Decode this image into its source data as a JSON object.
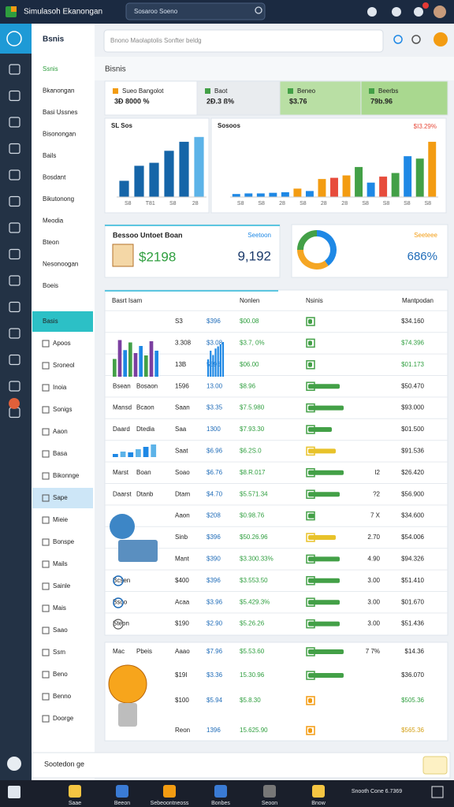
{
  "header": {
    "title": "Simulasoh Ekanongan",
    "search": "Sosaroo Soeno"
  },
  "sidebar": {
    "title": "Bsnis",
    "items": [
      "Ssnis",
      "Bkanongan",
      "Basi Ussnes",
      "Bisonongan",
      "Bails",
      "Bosdant",
      "Bikutonong",
      "Meodia",
      "Bteon",
      "Nesonoogan",
      "Boeis",
      "Basis",
      "Apoos",
      "Sroneol",
      "Inoia",
      "Sonigs",
      "Aaon",
      "Basa",
      "Bikonnge",
      "Sape",
      "Mieie",
      "Bonspe",
      "Mails",
      "Sainle",
      "Mais",
      "Saao",
      "Ssm",
      "Beno",
      "Benno",
      "Doorge"
    ],
    "footer": "Sootedon ge"
  },
  "search": {
    "placeholder": "Bnono Maolaptolis Sonfter beldg"
  },
  "section_title": "Bisnis",
  "kpis": [
    {
      "label": "Sueo Bangolot",
      "value": "3Ð 8000 %",
      "color": "#ffffff"
    },
    {
      "label": "Baot",
      "value": "2Ð.3 ß%",
      "color": "#e9ecef"
    },
    {
      "label": "Beneo",
      "value": "$3.76",
      "color": "#b9dfa4"
    },
    {
      "label": "Beerbs",
      "value": "79b.96",
      "color": "#a9d88f"
    }
  ],
  "charts": [
    {
      "title": "SL Sos",
      "values": [
        27,
        52,
        57,
        77,
        92,
        100
      ],
      "colors": [
        "#1565a8",
        "#1565a8",
        "#1565a8",
        "#1565a8",
        "#1565a8",
        "#5cb3e8"
      ],
      "xlabels": [
        "S8",
        "T81",
        "S8",
        "28"
      ],
      "ylim": [
        0,
        105
      ]
    },
    {
      "title": "Sosoos",
      "note": "$I3.29%",
      "values": [
        5,
        6,
        6,
        7,
        8,
        14,
        10,
        30,
        32,
        36,
        50,
        24,
        34,
        40,
        68,
        64,
        92
      ],
      "colors": [
        "#1e88e5",
        "#1e88e5",
        "#1e88e5",
        "#1e88e5",
        "#1e88e5",
        "#f39c12",
        "#1e88e5",
        "#f39c12",
        "#e74c3c",
        "#f39c12",
        "#43a047",
        "#1e88e5",
        "#e74c3c",
        "#43a047",
        "#1e88e5",
        "#43a047",
        "#f39c12"
      ],
      "xlabels": [
        "S8",
        "S8",
        "28",
        "S8",
        "28",
        "28",
        "S8",
        "S8",
        "S8",
        "S8"
      ],
      "ylim": [
        0,
        105
      ]
    }
  ],
  "cards": [
    {
      "label": "Bessoo Untoet Boan",
      "value": "$2198"
    },
    {
      "label": "Seetoon",
      "value": "9,192"
    },
    {
      "label": "Seeteee",
      "value": "686%",
      "donut": [
        40,
        35,
        25
      ],
      "donut_colors": [
        "#1e88e5",
        "#f5a623",
        "#43a047"
      ]
    }
  ],
  "mini_charts": [
    {
      "values": [
        30,
        62,
        45,
        58,
        40,
        52,
        36,
        60,
        44
      ],
      "colors": [
        "#43a047",
        "#7b3fa0",
        "#1e88e5",
        "#43a047",
        "#7b3fa0",
        "#1e88e5",
        "#43a047",
        "#7b3fa0",
        "#1e88e5"
      ]
    },
    {
      "values": [
        20,
        35,
        30,
        50,
        65,
        80
      ],
      "colors": [
        "#1e88e5",
        "#5cb3e8",
        "#1e88e5",
        "#5cb3e8",
        "#1e88e5",
        "#5cb3e8"
      ]
    },
    {
      "values": [
        40,
        60,
        50,
        65,
        70,
        75,
        80
      ],
      "colors": [
        "#1e88e5",
        "#1e88e5",
        "#1e88e5",
        "#1e88e5",
        "#1e88e5",
        "#1e88e5",
        "#1e88e5"
      ]
    }
  ],
  "table": {
    "headers": [
      "Basrt Isam",
      "Nonlen",
      "Nsinis",
      "Mantpodan"
    ],
    "rows": [
      {
        "c3": "S3",
        "c4": "$396",
        "c5": "$00.08",
        "progress": 5,
        "bar_color": "#43a047",
        "amount": "$34.160",
        "amount_color": "#222222"
      },
      {
        "c3": "3.308",
        "c4": "$3.08",
        "c5": "$3.7, 0%",
        "progress": 5,
        "bar_color": "#43a047",
        "amount": "$74.396",
        "amount_color": "#2e9e3e"
      },
      {
        "c3": "13B",
        "c4": "5396",
        "c5": "$06.00",
        "progress": 5,
        "bar_color": "#43a047",
        "amount": "$01.173",
        "amount_color": "#2e9e3e"
      },
      {
        "name": "Bsean",
        "sub": "Bosaon",
        "c3": "1596",
        "c4": "13.00",
        "c5": "$8.96",
        "progress": 40,
        "bar_color": "#43a047",
        "amount": "$50.470",
        "amount_color": "#222222"
      },
      {
        "name": "Mansd",
        "sub": "Bcaon",
        "c3": "Saan",
        "c4": "$3.35",
        "c5": "$7.5.980",
        "progress": 45,
        "bar_color": "#43a047",
        "amount": "$93.000",
        "amount_color": "#222222"
      },
      {
        "name": "Daard",
        "sub": "Dtedia",
        "c3": "Saa",
        "c4": "1300",
        "c5": "$7.93.30",
        "progress": 30,
        "bar_color": "#43a047",
        "amount": "$01.500",
        "amount_color": "#222222"
      },
      {
        "c3": "Saat",
        "c4": "$6.96",
        "c5": "$6.2S.0",
        "progress": 35,
        "bar_color": "#e8c22a",
        "amount": "$91.536",
        "amount_color": "#222222"
      },
      {
        "name": "Marst",
        "sub": "Boan",
        "c3": "Soao",
        "c4": "$6.76",
        "c5": "$8.R.017",
        "progress": 45,
        "bar_color": "#43a047",
        "extra": "I2",
        "amount": "$26.420",
        "amount_color": "#222222"
      },
      {
        "name": "Daarst",
        "sub": "Dtanb",
        "c3": "Dtam",
        "c4": "$4.70",
        "c5": "$5.571.34",
        "progress": 40,
        "bar_color": "#43a047",
        "extra": "?2",
        "amount": "$56.900",
        "amount_color": "#222222"
      },
      {
        "c3": "Aaon",
        "c4": "$208",
        "c5": "$0.98.76",
        "progress": 8,
        "bar_color": "#43a047",
        "extra": "7 X",
        "amount": "$34.600",
        "amount_color": "#222222"
      },
      {
        "c3": "Sinb",
        "c4": "$396",
        "c5": "$50.26.96",
        "progress": 35,
        "bar_color": "#e8c22a",
        "extra": "2.70",
        "amount": "$54.006",
        "amount_color": "#222222"
      },
      {
        "c3": "Mant",
        "c4": "$390",
        "c5": "$3.300.33%",
        "progress": 40,
        "bar_color": "#43a047",
        "extra": "4.90",
        "amount": "$94.326",
        "amount_color": "#222222"
      },
      {
        "name": "Bcsen",
        "c3": "$400",
        "c4": "$396",
        "c5": "$3.553.50",
        "progress": 40,
        "bar_color": "#43a047",
        "extra": "3.00",
        "amount": "$51.410",
        "amount_color": "#222222"
      },
      {
        "name": "Bsoo",
        "c3": "Acaa",
        "c4": "$3.96",
        "c5": "$5.429.3%",
        "progress": 40,
        "bar_color": "#43a047",
        "extra": "3.00",
        "amount": "$01.670",
        "amount_color": "#222222"
      },
      {
        "name": "Steon",
        "c3": "$190",
        "c4": "$2.90",
        "c5": "$5.26.26",
        "progress": 40,
        "bar_color": "#43a047",
        "extra": "3.00",
        "amount": "$51.436",
        "amount_color": "#222222"
      }
    ]
  },
  "table2": {
    "rows": [
      {
        "name": "Mac",
        "sub": "Pbeis",
        "c3": "Aaao",
        "c4": "$7.96",
        "c5": "$5.53.60",
        "progress": 45,
        "bar_color": "#43a047",
        "extra": "7 7%",
        "amount": "$14.36",
        "amount_color": "#222222"
      },
      {
        "c3": "$19I",
        "c4": "$3.36",
        "c5": "15.30.96",
        "progress": 45,
        "bar_color": "#43a047",
        "amount": "$36.070",
        "amount_color": "#222222"
      },
      {
        "c3": "$100",
        "c4": "$5.94",
        "c5": "$5.8.30",
        "progress": 5,
        "bar_color": "#f39c12",
        "amount": "$505.36",
        "amount_color": "#2e9e3e"
      },
      {
        "c3": "Reon",
        "c4": "1396",
        "c5": "15.625.90",
        "progress": 5,
        "bar_color": "#f39c12",
        "amount": "$565.36",
        "amount_color": "#d4a017"
      }
    ]
  },
  "taskbar": [
    "Saae",
    "Beeon",
    "Sebeoontneoss",
    "Bonbes",
    "Seoon",
    "Bnow",
    "Snooth Cone 6.7369"
  ]
}
